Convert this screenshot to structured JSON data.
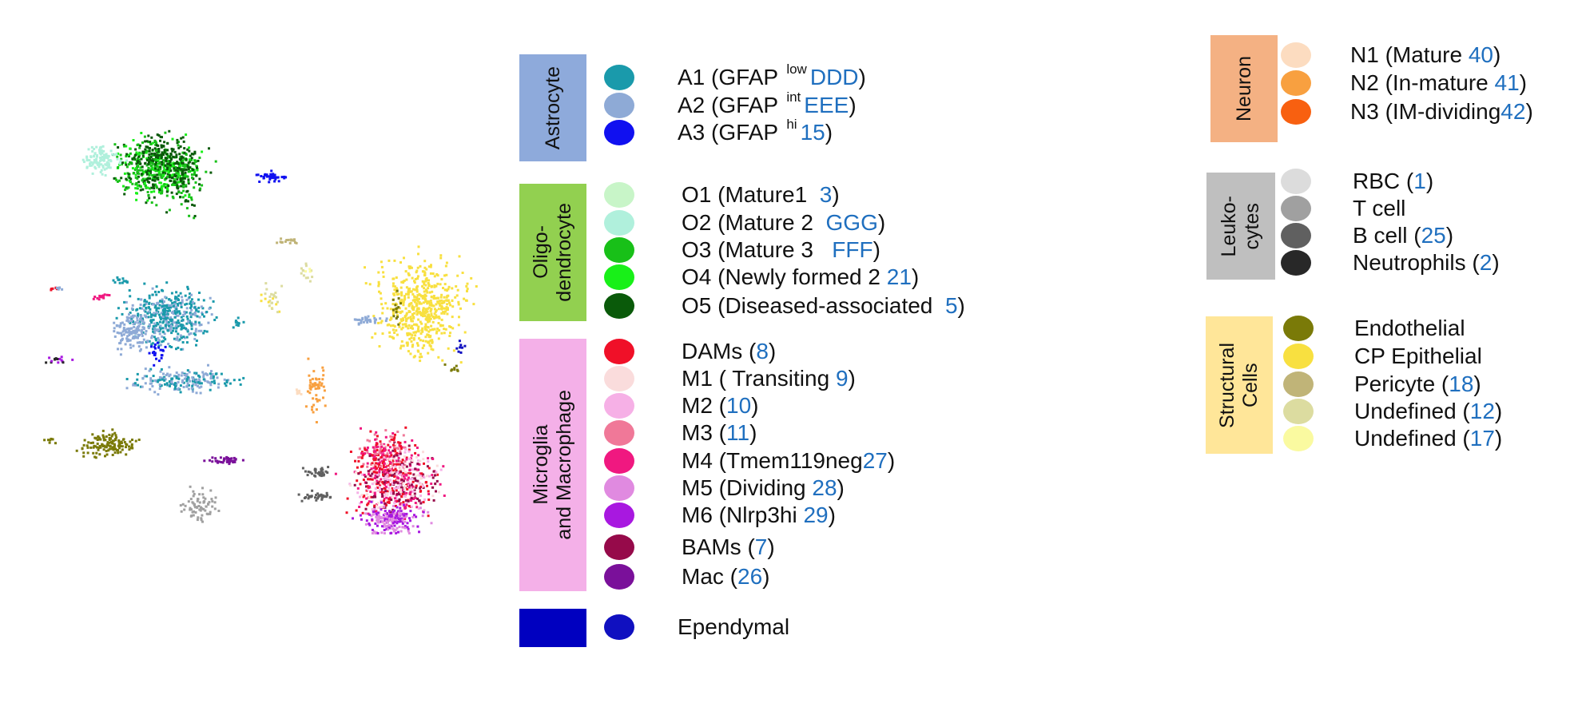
{
  "colors": {
    "number_text": "#1f6fbf",
    "astrocyte_box": "#8eaadb",
    "oligodendrocyte_box": "#92d050",
    "microglia_box": "#f4b0e8",
    "ependymal_box": "#0000c0",
    "neuron_box": "#f4b183",
    "leukocytes_box": "#bfbfbf",
    "structural_box": "#ffe699"
  },
  "groups": [
    {
      "id": "astrocyte",
      "label": "Astrocyte",
      "entries": [
        {
          "pre": "A1 (GFAP ",
          "sup": "low",
          "num": "DDD",
          "post": ")",
          "color": "#1a9aab"
        },
        {
          "pre": "A2 (GFAP ",
          "sup": "int",
          "num": "EEE",
          "post": ")",
          "color": "#8eaad6"
        },
        {
          "pre": "A3 (GFAP ",
          "sup": "hi",
          "num": "15",
          "post": ")",
          "color": "#1010f0"
        }
      ]
    },
    {
      "id": "oligodendrocyte",
      "label": "Oligo-\ndendrocyte",
      "entries": [
        {
          "pre": "O1 (Mature1  ",
          "sup": "",
          "num": "3",
          "post": ")",
          "color": "#c8f5c8"
        },
        {
          "pre": "O2 (Mature 2  ",
          "sup": "",
          "num": "GGG",
          "post": ")",
          "color": "#b0f0dc"
        },
        {
          "pre": "O3 (Mature 3   ",
          "sup": "",
          "num": "FFF",
          "post": ")",
          "color": "#18c018"
        },
        {
          "pre": "O4 (Newly formed 2 ",
          "sup": "",
          "num": "21",
          "post": ")",
          "color": "#18f018"
        },
        {
          "pre": "O5 (Diseased-associated  ",
          "sup": "",
          "num": "5",
          "post": ")",
          "color": "#0a5a0a"
        }
      ]
    },
    {
      "id": "microglia",
      "label": "Microglia\nand Macrophage",
      "entries": [
        {
          "pre": "DAMs (",
          "sup": "",
          "num": "8",
          "post": ")",
          "color": "#f01028"
        },
        {
          "pre": "M1 ( Transiting ",
          "sup": "",
          "num": "9",
          "post": ")",
          "color": "#fadcdc"
        },
        {
          "pre": "M2 (",
          "sup": "",
          "num": "10",
          "post": ")",
          "color": "#f6b0e6"
        },
        {
          "pre": "M3 (",
          "sup": "",
          "num": "11",
          "post": ")",
          "color": "#f07898"
        },
        {
          "pre": "M4 (Tmem119neg",
          "sup": "",
          "num": "27",
          "post": ")",
          "color": "#f01880"
        },
        {
          "pre": "M5 (Dividing ",
          "sup": "",
          "num": "28",
          "post": ")",
          "color": "#e08ae0"
        },
        {
          "pre": "M6 (Nlrp3hi ",
          "sup": "",
          "num": "29",
          "post": ")",
          "color": "#a818e0"
        },
        {
          "pre": "BAMs (",
          "sup": "",
          "num": "7",
          "post": ")",
          "color": "#960a4a"
        },
        {
          "pre": "Mac (",
          "sup": "",
          "num": "26",
          "post": ")",
          "color": "#7a109a"
        }
      ]
    },
    {
      "id": "ependymal",
      "label": "",
      "entries": [
        {
          "pre": "Ependymal",
          "sup": "",
          "num": "",
          "post": "",
          "color": "#1010c0"
        }
      ]
    },
    {
      "id": "neuron",
      "label": "Neuron",
      "entries": [
        {
          "pre": "N1 (Mature ",
          "sup": "",
          "num": "40",
          "post": ")",
          "color": "#fcdcc0"
        },
        {
          "pre": "N2 (In-mature ",
          "sup": "",
          "num": "41",
          "post": ")",
          "color": "#f8a040"
        },
        {
          "pre": "N3 (IM-dividing",
          "sup": "",
          "num": "42",
          "post": ")",
          "color": "#f86010"
        }
      ]
    },
    {
      "id": "leukocytes",
      "label": "Leuko-\ncytes",
      "entries": [
        {
          "pre": "RBC (",
          "sup": "",
          "num": "1",
          "post": ")",
          "color": "#dcdcdc"
        },
        {
          "pre": "T cell",
          "sup": "",
          "num": "",
          "post": "",
          "color": "#a0a0a0"
        },
        {
          "pre": "B cell (",
          "sup": "",
          "num": "25",
          "post": ")",
          "color": "#606060"
        },
        {
          "pre": "Neutrophils (",
          "sup": "",
          "num": "2",
          "post": ")",
          "color": "#282828"
        }
      ]
    },
    {
      "id": "structural",
      "label": "Structural\nCells",
      "entries": [
        {
          "pre": "Endothelial",
          "sup": "",
          "num": "",
          "post": "",
          "color": "#7a7a08"
        },
        {
          "pre": "CP Epithelial",
          "sup": "",
          "num": "",
          "post": "",
          "color": "#f8e040"
        },
        {
          "pre": "Pericyte (",
          "sup": "",
          "num": "18",
          "post": ")",
          "color": "#c0b478"
        },
        {
          "pre": "Undefined (",
          "sup": "",
          "num": "12",
          "post": ")",
          "color": "#dcdca0"
        },
        {
          "pre": "Undefined (",
          "sup": "",
          "num": "17",
          "post": ")",
          "color": "#fafaa0"
        }
      ]
    }
  ]
}
